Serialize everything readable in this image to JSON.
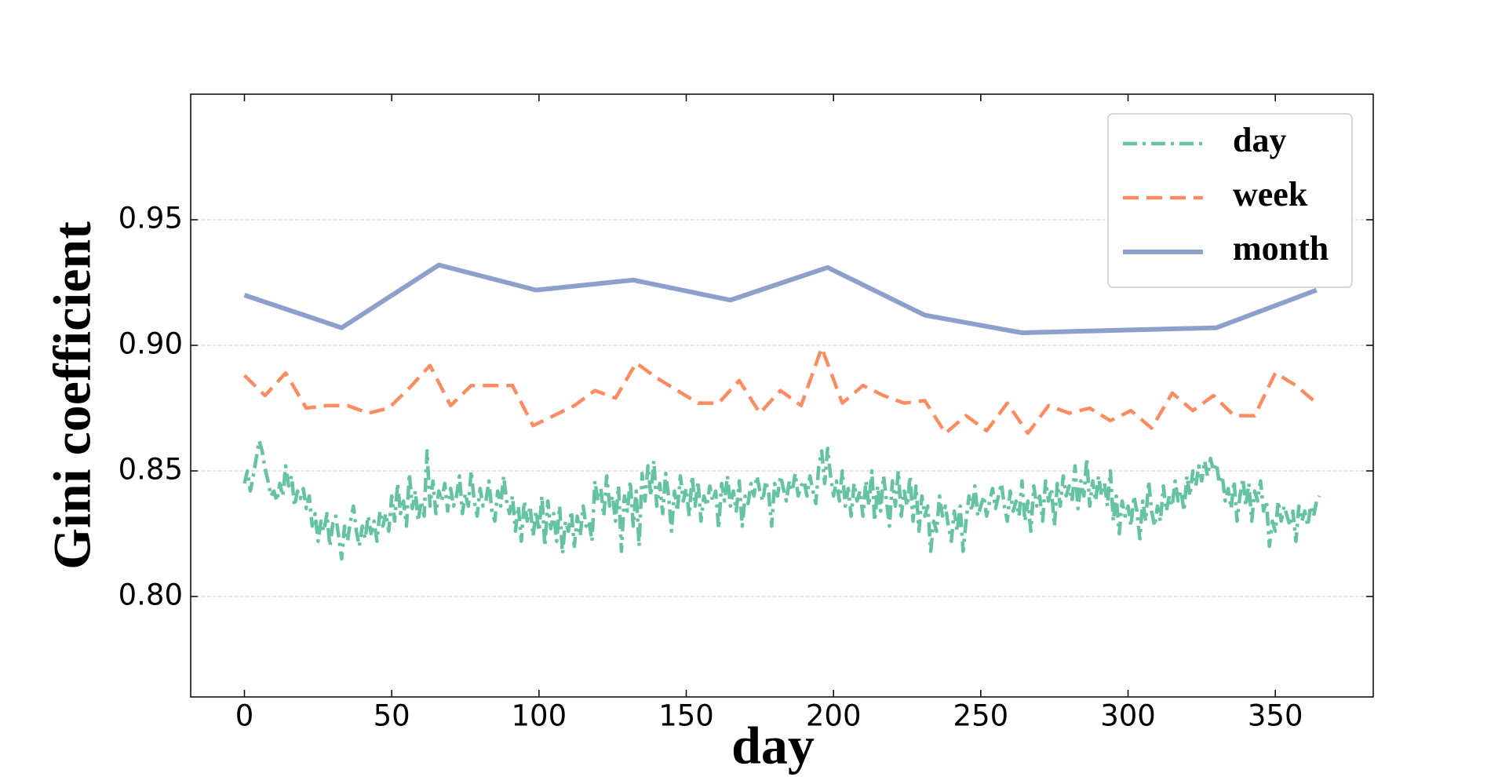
{
  "chart_data": {
    "type": "line",
    "xlabel": "day",
    "ylabel": "Gini coefficient",
    "xlim": [
      -18.25,
      383.25
    ],
    "ylim": [
      0.76,
      1.0
    ],
    "xticks": [
      0,
      50,
      100,
      150,
      200,
      250,
      300,
      350
    ],
    "yticks": [
      {
        "value": 0.8,
        "label": "0.80"
      },
      0.85,
      {
        "value": 0.9,
        "label": "0.90"
      },
      0.95
    ],
    "grid": true,
    "legend": "upper right",
    "series": [
      {
        "name": "day",
        "color": "#66c2a5",
        "linestyle": "dashdot",
        "x": [
          0,
          1,
          2,
          3,
          4,
          5,
          6,
          7,
          8,
          9,
          10,
          11,
          12,
          13,
          14,
          15,
          16,
          17,
          18,
          19,
          20,
          21,
          22,
          23,
          24,
          25,
          26,
          27,
          28,
          29,
          30,
          31,
          32,
          33,
          34,
          35,
          36,
          37,
          38,
          39,
          40,
          41,
          42,
          43,
          44,
          45,
          46,
          47,
          48,
          49,
          50,
          51,
          52,
          53,
          54,
          55,
          56,
          57,
          58,
          59,
          60,
          61,
          62,
          63,
          64,
          65,
          66,
          67,
          68,
          69,
          70,
          71,
          72,
          73,
          74,
          75,
          76,
          77,
          78,
          79,
          80,
          81,
          82,
          83,
          84,
          85,
          86,
          87,
          88,
          89,
          90,
          91,
          92,
          93,
          94,
          95,
          96,
          97,
          98,
          99,
          100,
          101,
          102,
          103,
          104,
          105,
          106,
          107,
          108,
          109,
          110,
          111,
          112,
          113,
          114,
          115,
          116,
          117,
          118,
          119,
          120,
          121,
          122,
          123,
          124,
          125,
          126,
          127,
          128,
          129,
          130,
          131,
          132,
          133,
          134,
          135,
          136,
          137,
          138,
          139,
          140,
          141,
          142,
          143,
          144,
          145,
          146,
          147,
          148,
          149,
          150,
          151,
          152,
          153,
          154,
          155,
          156,
          157,
          158,
          159,
          160,
          161,
          162,
          163,
          164,
          165,
          166,
          167,
          168,
          169,
          170,
          171,
          172,
          173,
          174,
          175,
          176,
          177,
          178,
          179,
          180,
          181,
          182,
          183,
          184,
          185,
          186,
          187,
          188,
          189,
          190,
          191,
          192,
          193,
          194,
          195,
          196,
          197,
          198,
          199,
          200,
          201,
          202,
          203,
          204,
          205,
          206,
          207,
          208,
          209,
          210,
          211,
          212,
          213,
          214,
          215,
          216,
          217,
          218,
          219,
          220,
          221,
          222,
          223,
          224,
          225,
          226,
          227,
          228,
          229,
          230,
          231,
          232,
          233,
          234,
          235,
          236,
          237,
          238,
          239,
          240,
          241,
          242,
          243,
          244,
          245,
          246,
          247,
          248,
          249,
          250,
          251,
          252,
          253,
          254,
          255,
          256,
          257,
          258,
          259,
          260,
          261,
          262,
          263,
          264,
          265,
          266,
          267,
          268,
          269,
          270,
          271,
          272,
          273,
          274,
          275,
          276,
          277,
          278,
          279,
          280,
          281,
          282,
          283,
          284,
          285,
          286,
          287,
          288,
          289,
          290,
          291,
          292,
          293,
          294,
          295,
          296,
          297,
          298,
          299,
          300,
          301,
          302,
          303,
          304,
          305,
          306,
          307,
          308,
          309,
          310,
          311,
          312,
          313,
          314,
          315,
          316,
          317,
          318,
          319,
          320,
          321,
          322,
          323,
          324,
          325,
          326,
          327,
          328,
          329,
          330,
          331,
          332,
          333,
          334,
          335,
          336,
          337,
          338,
          339,
          340,
          341,
          342,
          343,
          344,
          345,
          346,
          347,
          348,
          349,
          350,
          351,
          352,
          353,
          354,
          355,
          356,
          357,
          358,
          359,
          360,
          361,
          362,
          363,
          364,
          365
        ],
        "values": [
          0.845,
          0.85,
          0.842,
          0.848,
          0.855,
          0.862,
          0.858,
          0.851,
          0.846,
          0.84,
          0.842,
          0.838,
          0.845,
          0.84,
          0.852,
          0.844,
          0.848,
          0.836,
          0.842,
          0.839,
          0.843,
          0.835,
          0.84,
          0.828,
          0.833,
          0.822,
          0.83,
          0.826,
          0.833,
          0.82,
          0.829,
          0.832,
          0.824,
          0.815,
          0.828,
          0.822,
          0.83,
          0.836,
          0.826,
          0.82,
          0.828,
          0.823,
          0.832,
          0.825,
          0.83,
          0.822,
          0.834,
          0.828,
          0.833,
          0.826,
          0.84,
          0.83,
          0.845,
          0.833,
          0.838,
          0.828,
          0.849,
          0.835,
          0.842,
          0.83,
          0.838,
          0.832,
          0.858,
          0.836,
          0.846,
          0.833,
          0.842,
          0.838,
          0.845,
          0.834,
          0.843,
          0.836,
          0.84,
          0.848,
          0.833,
          0.841,
          0.836,
          0.85,
          0.838,
          0.832,
          0.843,
          0.836,
          0.838,
          0.846,
          0.834,
          0.83,
          0.842,
          0.836,
          0.848,
          0.838,
          0.833,
          0.84,
          0.826,
          0.836,
          0.822,
          0.838,
          0.83,
          0.836,
          0.824,
          0.834,
          0.826,
          0.84,
          0.82,
          0.838,
          0.827,
          0.833,
          0.822,
          0.836,
          0.817,
          0.83,
          0.826,
          0.834,
          0.82,
          0.832,
          0.824,
          0.836,
          0.828,
          0.83,
          0.822,
          0.846,
          0.838,
          0.843,
          0.832,
          0.848,
          0.836,
          0.84,
          0.83,
          0.844,
          0.818,
          0.84,
          0.834,
          0.846,
          0.828,
          0.842,
          0.82,
          0.849,
          0.838,
          0.852,
          0.84,
          0.854,
          0.836,
          0.845,
          0.833,
          0.849,
          0.84,
          0.826,
          0.842,
          0.834,
          0.848,
          0.838,
          0.843,
          0.832,
          0.848,
          0.836,
          0.846,
          0.83,
          0.84,
          0.836,
          0.844,
          0.838,
          0.842,
          0.827,
          0.845,
          0.838,
          0.848,
          0.836,
          0.842,
          0.834,
          0.846,
          0.828,
          0.84,
          0.837,
          0.845,
          0.84,
          0.848,
          0.842,
          0.838,
          0.846,
          0.841,
          0.828,
          0.845,
          0.84,
          0.848,
          0.843,
          0.838,
          0.846,
          0.842,
          0.849,
          0.84,
          0.844,
          0.846,
          0.84,
          0.848,
          0.842,
          0.837,
          0.852,
          0.858,
          0.845,
          0.859,
          0.848,
          0.84,
          0.846,
          0.838,
          0.85,
          0.836,
          0.843,
          0.832,
          0.845,
          0.838,
          0.842,
          0.832,
          0.846,
          0.836,
          0.85,
          0.83,
          0.844,
          0.834,
          0.848,
          0.838,
          0.828,
          0.846,
          0.836,
          0.85,
          0.832,
          0.842,
          0.836,
          0.848,
          0.83,
          0.844,
          0.826,
          0.84,
          0.832,
          0.836,
          0.818,
          0.83,
          0.826,
          0.84,
          0.832,
          0.836,
          0.828,
          0.822,
          0.834,
          0.826,
          0.836,
          0.818,
          0.83,
          0.84,
          0.834,
          0.844,
          0.832,
          0.836,
          0.84,
          0.832,
          0.838,
          0.843,
          0.835,
          0.84,
          0.845,
          0.836,
          0.83,
          0.842,
          0.834,
          0.838,
          0.832,
          0.846,
          0.83,
          0.838,
          0.826,
          0.844,
          0.836,
          0.84,
          0.83,
          0.846,
          0.838,
          0.843,
          0.828,
          0.845,
          0.836,
          0.848,
          0.84,
          0.844,
          0.838,
          0.852,
          0.835,
          0.846,
          0.84,
          0.855,
          0.836,
          0.846,
          0.838,
          0.848,
          0.84,
          0.845,
          0.836,
          0.85,
          0.83,
          0.84,
          0.825,
          0.838,
          0.832,
          0.836,
          0.828,
          0.84,
          0.834,
          0.823,
          0.838,
          0.83,
          0.846,
          0.834,
          0.828,
          0.836,
          0.83,
          0.844,
          0.834,
          0.84,
          0.836,
          0.846,
          0.838,
          0.842,
          0.834,
          0.848,
          0.84,
          0.85,
          0.844,
          0.852,
          0.846,
          0.854,
          0.848,
          0.855,
          0.85,
          0.853,
          0.845,
          0.848,
          0.838,
          0.843,
          0.835,
          0.846,
          0.83,
          0.84,
          0.847,
          0.836,
          0.845,
          0.83,
          0.842,
          0.838,
          0.846,
          0.834,
          0.838,
          0.82,
          0.83,
          0.826,
          0.838,
          0.83,
          0.836,
          0.832,
          0.828,
          0.834,
          0.822,
          0.836,
          0.83,
          0.834,
          0.828,
          0.836,
          0.832,
          0.838,
          0.84
        ]
      },
      {
        "name": "week",
        "color": "#fc8d62",
        "linestyle": "dashed",
        "x": [
          0,
          7,
          14,
          21,
          28,
          35,
          42,
          49,
          56,
          63,
          70,
          77,
          84,
          91,
          98,
          105,
          112,
          119,
          126,
          133,
          140,
          147,
          154,
          161,
          168,
          175,
          182,
          189,
          196,
          203,
          210,
          217,
          224,
          231,
          238,
          245,
          252,
          259,
          266,
          273,
          280,
          287,
          294,
          301,
          308,
          315,
          322,
          329,
          336,
          343,
          350,
          357,
          364
        ],
        "values": [
          0.888,
          0.88,
          0.889,
          0.875,
          0.876,
          0.876,
          0.873,
          0.875,
          0.883,
          0.892,
          0.876,
          0.884,
          0.884,
          0.884,
          0.868,
          0.872,
          0.876,
          0.882,
          0.879,
          0.893,
          0.887,
          0.882,
          0.877,
          0.877,
          0.886,
          0.873,
          0.882,
          0.876,
          0.899,
          0.877,
          0.884,
          0.88,
          0.877,
          0.878,
          0.865,
          0.872,
          0.866,
          0.877,
          0.865,
          0.876,
          0.873,
          0.875,
          0.87,
          0.874,
          0.867,
          0.881,
          0.874,
          0.88,
          0.872,
          0.872,
          0.889,
          0.884,
          0.877
        ]
      },
      {
        "name": "month",
        "color": "#8da0cb",
        "linestyle": "solid",
        "x": [
          0,
          33,
          66,
          99,
          132,
          165,
          198,
          231,
          264,
          297,
          330,
          364
        ],
        "values": [
          0.92,
          0.907,
          0.932,
          0.922,
          0.926,
          0.918,
          0.931,
          0.912,
          0.905,
          0.906,
          0.907,
          0.922
        ]
      }
    ]
  }
}
